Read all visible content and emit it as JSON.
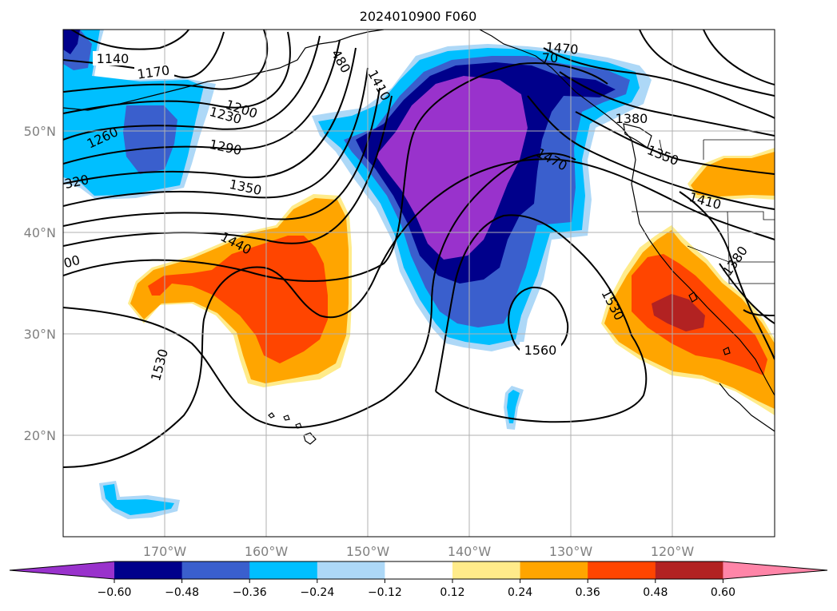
{
  "title": "2024010900 F060",
  "lat_labels": [
    "50°N",
    "40°N",
    "30°N",
    "20°N"
  ],
  "lon_labels": [
    "170°W",
    "160°W",
    "150°W",
    "140°W",
    "130°W",
    "120°W"
  ],
  "colorbar": {
    "ticks": [
      "−0.60",
      "−0.48",
      "−0.36",
      "−0.24",
      "−0.12",
      "0.12",
      "0.24",
      "0.36",
      "0.48",
      "0.60"
    ],
    "colors": [
      "#9932cc",
      "#00008b",
      "#3a5fcd",
      "#00bfff",
      "#add8f7",
      "#ffffff",
      "#ffeb8a",
      "#ffa500",
      "#ff4500",
      "#b22222",
      "#ff85a8"
    ]
  },
  "contour_labels": {
    "c1140": "1140",
    "c1170": "1170",
    "c1200": "1200",
    "c1230": "1230",
    "c1260": "1260",
    "c1290": "1290",
    "c1320": "320",
    "c1350a": "1350",
    "c1440": "1440",
    "c1410a": "1410",
    "c1470a": "1470",
    "c1470b": "1470",
    "c1380a": "1380",
    "c1350b": "1350",
    "c1410b": "1410",
    "c1380b": "1380",
    "c1530a": "1530",
    "c1530b": "1530",
    "c1560": "1560",
    "c1500": "00",
    "c1480": "480",
    "c1470c": "70"
  }
}
